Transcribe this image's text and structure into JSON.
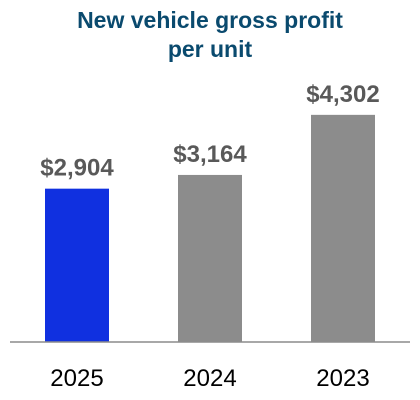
{
  "chart_data": {
    "type": "bar",
    "title_lines": [
      "New vehicle gross profit",
      "per unit"
    ],
    "categories": [
      "2025",
      "2024",
      "2023"
    ],
    "values": [
      2904,
      3164,
      4302
    ],
    "value_labels": [
      "$2,904",
      "$3,164",
      "$4,302"
    ],
    "colors": [
      "#1030E0",
      "#8C8C8C",
      "#8C8C8C"
    ],
    "title_color": "#0A4A6E",
    "label_color": "#595959",
    "axis_color": "#8C8C8C",
    "ylim": [
      0,
      5000
    ],
    "xlabel": "",
    "ylabel": "",
    "grid": false,
    "legend": "none"
  }
}
